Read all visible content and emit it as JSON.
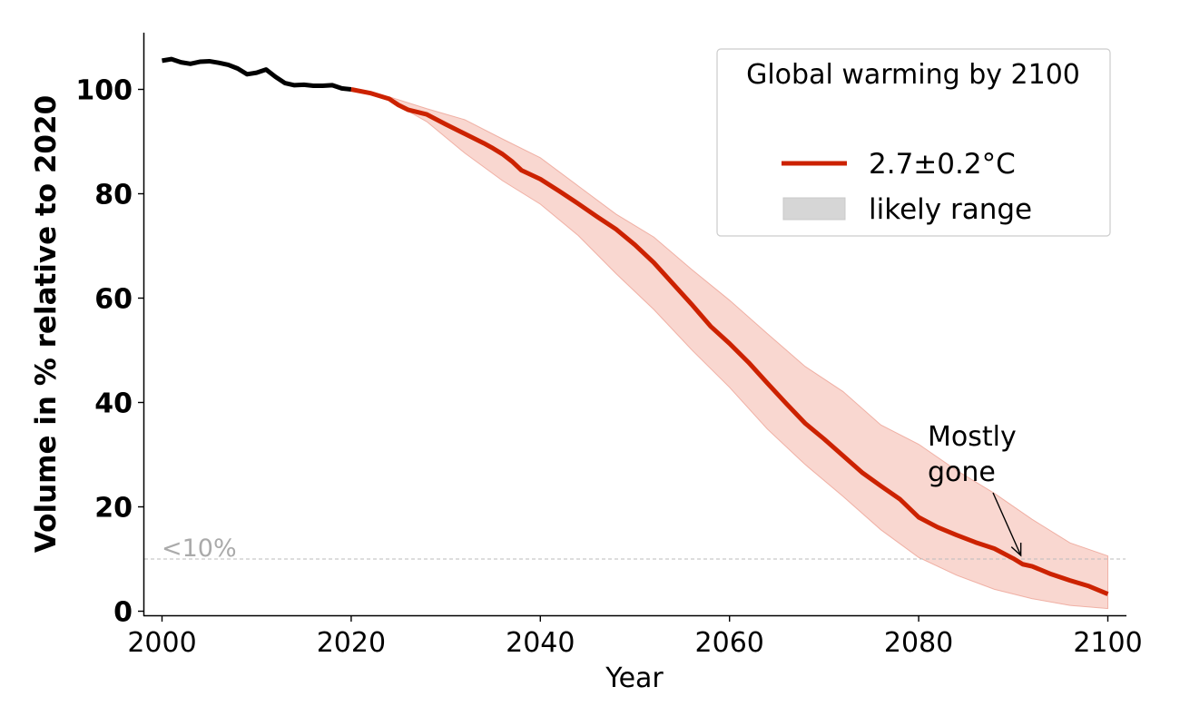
{
  "chart_data": {
    "type": "line",
    "title": "",
    "xlabel": "Year",
    "ylabel": "Volume in % relative to 2020",
    "xlim": [
      1998,
      2102
    ],
    "ylim": [
      -1,
      111
    ],
    "xticks": [
      2000,
      2020,
      2040,
      2060,
      2080,
      2100
    ],
    "yticks": [
      0,
      20,
      40,
      60,
      80,
      100
    ],
    "colors": {
      "historical": "#000000",
      "projection": "#cc2200",
      "range_fill": "#f0a090",
      "range_edge": "#e88a7a",
      "legend_patch": "#d6d6d6",
      "threshold": "#bbbbbb",
      "threshold_text": "#aaaaaa"
    },
    "series": [
      {
        "name": "historical",
        "x": [
          2000,
          2001,
          2002,
          2003,
          2004,
          2005,
          2006,
          2007,
          2008,
          2009,
          2010,
          2011,
          2012,
          2013,
          2014,
          2015,
          2016,
          2017,
          2018,
          2019,
          2020
        ],
        "y": [
          105.5,
          105.8,
          105.2,
          104.9,
          105.3,
          105.4,
          105.1,
          104.7,
          104.0,
          102.9,
          103.2,
          103.8,
          102.4,
          101.2,
          100.8,
          100.9,
          100.7,
          100.7,
          100.8,
          100.2,
          100.0
        ]
      },
      {
        "name": "2.7±0.2°C",
        "x": [
          2020,
          2022,
          2024,
          2025,
          2026,
          2028,
          2030,
          2032,
          2034,
          2035,
          2036,
          2037,
          2038,
          2040,
          2042,
          2044,
          2046,
          2048,
          2050,
          2052,
          2054,
          2056,
          2058,
          2060,
          2062,
          2064,
          2066,
          2068,
          2070,
          2072,
          2074,
          2076,
          2078,
          2080,
          2082,
          2084,
          2086,
          2088,
          2090,
          2091,
          2092,
          2094,
          2096,
          2098,
          2100
        ],
        "y": [
          100,
          99.3,
          98.2,
          97.0,
          96.1,
          95.2,
          93.3,
          91.5,
          89.7,
          88.7,
          87.6,
          86.2,
          84.5,
          82.8,
          80.5,
          78.1,
          75.6,
          73.2,
          70.2,
          66.8,
          62.8,
          58.8,
          54.6,
          51.3,
          47.7,
          43.7,
          39.8,
          36.0,
          33.0,
          29.8,
          26.6,
          24.0,
          21.5,
          18.0,
          16.1,
          14.6,
          13.2,
          12.0,
          10.1,
          9.0,
          8.6,
          7.1,
          5.9,
          4.8,
          3.3
        ]
      }
    ],
    "band": {
      "name": "likely range",
      "x": [
        2020,
        2024,
        2028,
        2032,
        2036,
        2040,
        2044,
        2048,
        2052,
        2056,
        2060,
        2064,
        2068,
        2072,
        2076,
        2080,
        2084,
        2088,
        2092,
        2096,
        2100
      ],
      "lower": [
        100,
        97.9,
        93.8,
        87.8,
        82.5,
        78.0,
        72.0,
        64.7,
        57.8,
        50.1,
        42.9,
        34.9,
        28.1,
        22.0,
        15.6,
        10.3,
        6.9,
        4.2,
        2.4,
        1.1,
        0.5
      ],
      "upper": [
        100,
        98.6,
        96.3,
        94.2,
        90.5,
        86.9,
        81.5,
        76.1,
        71.7,
        65.5,
        59.6,
        53.2,
        46.9,
        42.1,
        35.7,
        32.0,
        27.0,
        22.6,
        17.6,
        13.1,
        10.6
      ]
    },
    "threshold": {
      "y": 10,
      "label": "<10%"
    },
    "annotation": {
      "text_line1": "Mostly",
      "text_line2": "gone",
      "point_x": 2090.8,
      "point_y": 10
    },
    "legend": {
      "title": "Global warming by 2100",
      "line_label": "2.7±0.2°C",
      "patch_label": "likely range",
      "position": "top-right"
    }
  }
}
